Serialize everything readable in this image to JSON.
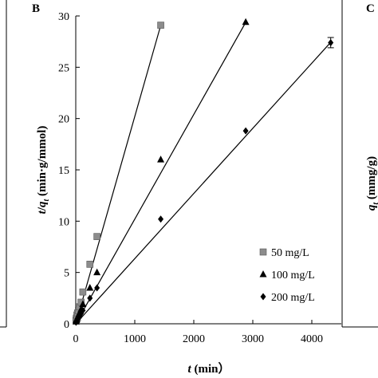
{
  "panel_left_letter": "B",
  "panel_right_letter": "C",
  "right_panel_ylabel_q": "q",
  "right_panel_ylabel_sub": "t",
  "right_panel_ylabel_unit": " (mmg/g)",
  "chart_data": {
    "type": "scatter",
    "title": "",
    "xlabel_var": "t",
    "xlabel_unit": " (min）",
    "ylabel_var1": "t",
    "ylabel_var2": "q",
    "ylabel_sub": "t",
    "ylabel_unit": " (min·g/mmol)",
    "xlim": [
      0,
      4500
    ],
    "ylim": [
      0,
      30
    ],
    "xticks": [
      0,
      1000,
      2000,
      3000,
      4000
    ],
    "xtick_labels": [
      "0",
      "1000",
      "2000",
      "3000",
      "4000"
    ],
    "yticks": [
      0,
      5,
      10,
      15,
      20,
      25,
      30
    ],
    "ytick_labels": [
      "0",
      "5",
      "10",
      "15",
      "20",
      "25",
      "30"
    ],
    "legend_position": "bottom-right",
    "series": [
      {
        "name": "50 mg/L",
        "marker": "square",
        "color": "#8c8c8c",
        "x": [
          5,
          10,
          20,
          30,
          45,
          60,
          90,
          120,
          240,
          360,
          1440
        ],
        "y": [
          0.35,
          0.55,
          0.85,
          1.05,
          1.3,
          1.65,
          2.1,
          3.1,
          5.8,
          8.5,
          29.1
        ],
        "fit_slope": 0.0202
      },
      {
        "name": "100 mg/L",
        "marker": "triangle",
        "color": "#000000",
        "x": [
          5,
          10,
          20,
          30,
          45,
          60,
          90,
          120,
          240,
          360,
          1440,
          2880
        ],
        "y": [
          0.2,
          0.35,
          0.45,
          0.6,
          0.8,
          1.0,
          1.4,
          1.9,
          3.5,
          5.0,
          16.0,
          29.4
        ],
        "fit_slope": 0.0102
      },
      {
        "name": "200 mg/L",
        "marker": "diamond",
        "color": "#000000",
        "x": [
          5,
          10,
          20,
          30,
          45,
          60,
          90,
          120,
          240,
          360,
          1440,
          2880,
          4320
        ],
        "y": [
          0.15,
          0.25,
          0.35,
          0.5,
          0.6,
          0.7,
          1.0,
          1.3,
          2.5,
          3.5,
          10.2,
          18.8,
          27.4
        ],
        "fit_slope": 0.00635,
        "error_bar_last": 0.5
      }
    ]
  }
}
